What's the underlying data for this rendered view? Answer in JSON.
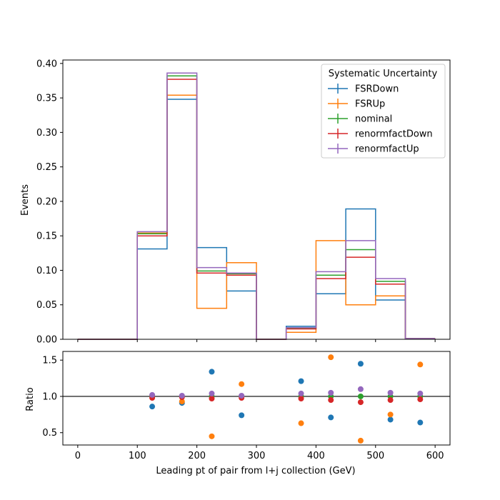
{
  "chart_data": [
    {
      "type": "step",
      "xlim": [
        -25,
        625
      ],
      "ylim": [
        0,
        0.405
      ],
      "ylabel": "Events",
      "xticks": [
        0,
        100,
        200,
        300,
        400,
        500,
        600
      ],
      "yticks": [
        "0.00",
        "0.05",
        "0.10",
        "0.15",
        "0.20",
        "0.25",
        "0.30",
        "0.35",
        "0.40"
      ],
      "ytick_values": [
        0,
        0.05,
        0.1,
        0.15,
        0.2,
        0.25,
        0.3,
        0.35,
        0.4
      ],
      "bin_edges": [
        0,
        50,
        100,
        150,
        200,
        250,
        300,
        350,
        400,
        450,
        500,
        550,
        600
      ],
      "legend": {
        "title": "Systematic Uncertainty",
        "placement": "top-right"
      },
      "series": [
        {
          "name": "FSRDown",
          "color": "#1f77b4",
          "values": [
            0,
            0,
            0.131,
            0.348,
            0.133,
            0.07,
            0,
            0.019,
            0.066,
            0.189,
            0.057,
            0.001
          ]
        },
        {
          "name": "FSRUp",
          "color": "#ff7f0e",
          "values": [
            0,
            0,
            0.154,
            0.354,
            0.045,
            0.111,
            0,
            0.01,
            0.143,
            0.05,
            0.063,
            0.001
          ]
        },
        {
          "name": "nominal",
          "color": "#2ca02c",
          "values": [
            0,
            0,
            0.153,
            0.382,
            0.099,
            0.095,
            0,
            0.016,
            0.093,
            0.13,
            0.084,
            0.001
          ]
        },
        {
          "name": "renormfactDown",
          "color": "#d62728",
          "values": [
            0,
            0,
            0.15,
            0.377,
            0.096,
            0.093,
            0,
            0.015,
            0.088,
            0.119,
            0.08,
            0.001
          ]
        },
        {
          "name": "renormfactUp",
          "color": "#9467bd",
          "values": [
            0,
            0,
            0.156,
            0.386,
            0.104,
            0.096,
            0,
            0.017,
            0.098,
            0.143,
            0.088,
            0.001
          ]
        }
      ]
    },
    {
      "type": "scatter",
      "xlim": [
        -25,
        625
      ],
      "ylim": [
        0.33,
        1.62
      ],
      "xlabel": "Leading pt of pair from l+j collection (GeV)",
      "ylabel": "Ratio",
      "xticks": [
        0,
        100,
        200,
        300,
        400,
        500,
        600
      ],
      "yticks": [
        "0.5",
        "1.0",
        "1.5"
      ],
      "ytick_values": [
        0.5,
        1.0,
        1.5
      ],
      "reference_line": 1.0,
      "x": [
        125,
        175,
        225,
        275,
        375,
        425,
        475,
        525,
        575
      ],
      "series": [
        {
          "name": "FSRDown",
          "color": "#1f77b4",
          "values": [
            0.86,
            0.91,
            1.34,
            0.74,
            1.21,
            0.71,
            1.45,
            0.68,
            0.64
          ]
        },
        {
          "name": "FSRUp",
          "color": "#ff7f0e",
          "values": [
            1.01,
            0.93,
            0.45,
            1.17,
            0.63,
            1.54,
            0.39,
            0.75,
            1.44
          ]
        },
        {
          "name": "nominal",
          "color": "#2ca02c",
          "values": [
            1.0,
            1.0,
            1.0,
            1.0,
            1.0,
            1.0,
            1.0,
            1.0,
            1.0
          ]
        },
        {
          "name": "renormfactDown",
          "color": "#d62728",
          "values": [
            0.98,
            0.99,
            0.97,
            0.98,
            0.97,
            0.95,
            0.92,
            0.95,
            0.96
          ]
        },
        {
          "name": "renormfactUp",
          "color": "#9467bd",
          "values": [
            1.02,
            1.01,
            1.04,
            1.01,
            1.04,
            1.05,
            1.1,
            1.05,
            1.04
          ]
        }
      ]
    }
  ]
}
